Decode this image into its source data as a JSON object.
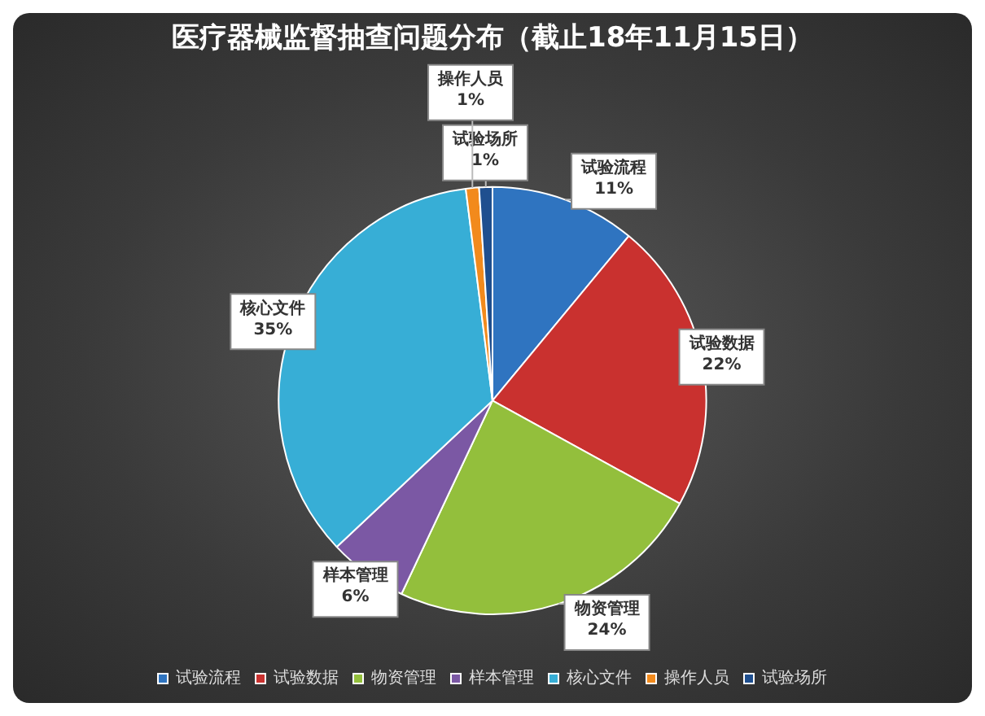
{
  "chart_data": {
    "type": "pie",
    "title": "医疗器械监督抽查问题分布（截止18年11月15日）",
    "categories": [
      "试验流程",
      "试验数据",
      "物资管理",
      "样本管理",
      "核心文件",
      "操作人员",
      "试验场所"
    ],
    "values": [
      11,
      22,
      24,
      6,
      35,
      1,
      1
    ],
    "value_labels": [
      "11%",
      "22%",
      "24%",
      "6%",
      "35%",
      "1%",
      "1%"
    ],
    "colors": [
      "#2f74c0",
      "#c9312f",
      "#93bf3c",
      "#7b58a4",
      "#37aed6",
      "#f28a1c",
      "#1f4f8f"
    ],
    "legend": "bottom"
  }
}
